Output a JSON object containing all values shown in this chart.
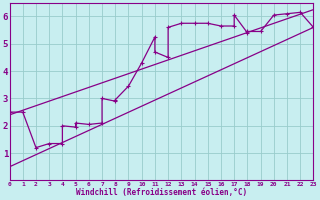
{
  "xlabel": "Windchill (Refroidissement éolien,°C)",
  "bg_color": "#c8eef0",
  "line_color": "#880088",
  "grid_color": "#99cccc",
  "xlim": [
    0,
    23
  ],
  "ylim": [
    0,
    6.5
  ],
  "xticks": [
    0,
    1,
    2,
    3,
    4,
    5,
    6,
    7,
    8,
    9,
    10,
    11,
    12,
    13,
    14,
    15,
    16,
    17,
    18,
    19,
    20,
    21,
    22,
    23
  ],
  "yticks": [
    1,
    2,
    3,
    4,
    5,
    6
  ],
  "curve_x": [
    0,
    1,
    2,
    3,
    4,
    4,
    5,
    5,
    6,
    7,
    7,
    8,
    8,
    9,
    10,
    11,
    11,
    12,
    12,
    13,
    14,
    15,
    16,
    17,
    17,
    18,
    18,
    19,
    20,
    21,
    22,
    23
  ],
  "curve_y": [
    2.5,
    2.5,
    1.2,
    1.35,
    1.35,
    2.0,
    1.95,
    2.1,
    2.05,
    2.1,
    3.0,
    2.9,
    2.95,
    3.45,
    4.3,
    5.25,
    4.7,
    4.5,
    5.6,
    5.75,
    5.75,
    5.75,
    5.65,
    5.65,
    6.05,
    5.4,
    5.45,
    5.45,
    6.05,
    6.1,
    6.15,
    5.6
  ],
  "line1_x": [
    0,
    23
  ],
  "line1_y": [
    0.5,
    5.6
  ],
  "line2_x": [
    0,
    23
  ],
  "line2_y": [
    2.4,
    6.25
  ]
}
